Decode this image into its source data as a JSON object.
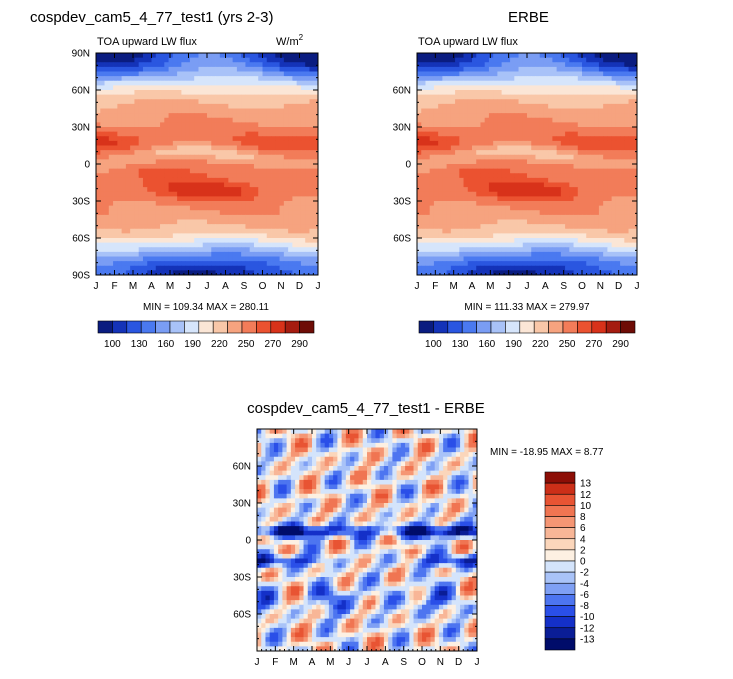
{
  "figure": {
    "colors": {
      "abs_scale": [
        "#0a1c80",
        "#1433b8",
        "#2a56e0",
        "#4a79f0",
        "#7a9df4",
        "#a8c2f8",
        "#d6e5fb",
        "#fbe6d6",
        "#f9c7a8",
        "#f6a37f",
        "#f27c59",
        "#eb5230",
        "#d8321a",
        "#a51c10",
        "#6e0c06"
      ],
      "diff_scale": [
        "#000c6a",
        "#0a1d96",
        "#1430c8",
        "#2a4fe8",
        "#4d75f0",
        "#7fa0f4",
        "#a9c3f8",
        "#d4e4fb",
        "#fdf0e2",
        "#fbd6bb",
        "#f8b697",
        "#f59674",
        "#f07552",
        "#e85433",
        "#cc2f18",
        "#8c0e06"
      ]
    }
  },
  "panels": {
    "model": {
      "title": "cospdev_cam5_4_77_test1 (yrs 2-3)",
      "subtitle": "TOA upward LW flux",
      "units_base": "W/m",
      "units_exp": "2",
      "stats": "MIN = 109.34 MAX = 280.11"
    },
    "obs": {
      "title": "ERBE",
      "subtitle": "TOA upward LW flux",
      "stats": "MIN = 111.33 MAX = 279.97"
    },
    "diff": {
      "title": "cospdev_cam5_4_77_test1 - ERBE",
      "stats": "MIN = -18.95 MAX =   8.77"
    }
  },
  "chart_data": [
    {
      "type": "heatmap",
      "id": "model",
      "title": "cospdev_cam5_4_77_test1 (yrs 2-3)",
      "subtitle": "TOA upward LW flux",
      "units": "W/m2",
      "x": [
        "J",
        "F",
        "M",
        "A",
        "M",
        "J",
        "J",
        "A",
        "S",
        "O",
        "N",
        "D",
        "J"
      ],
      "y_ticks": [
        "90N",
        "60N",
        "30N",
        "0",
        "30S",
        "60S",
        "90S"
      ],
      "y_values": [
        90,
        60,
        30,
        0,
        -30,
        -60,
        -90
      ],
      "ylim": [
        -90,
        90
      ],
      "min": 109.34,
      "max": 280.11,
      "colorbar_labels": [
        "100",
        "130",
        "160",
        "190",
        "220",
        "250",
        "270",
        "290"
      ]
    },
    {
      "type": "heatmap",
      "id": "obs",
      "title": "ERBE",
      "subtitle": "TOA upward LW flux",
      "x": [
        "J",
        "F",
        "M",
        "A",
        "M",
        "J",
        "J",
        "A",
        "S",
        "O",
        "N",
        "D",
        "J"
      ],
      "y_ticks": [
        "60N",
        "30N",
        "0",
        "30S",
        "60S"
      ],
      "y_values": [
        60,
        30,
        0,
        -30,
        -60
      ],
      "ylim": [
        -90,
        90
      ],
      "min": 111.33,
      "max": 279.97,
      "colorbar_labels": [
        "100",
        "130",
        "160",
        "190",
        "220",
        "250",
        "270",
        "290"
      ]
    },
    {
      "type": "heatmap",
      "id": "diff",
      "title": "cospdev_cam5_4_77_test1 - ERBE",
      "x": [
        "J",
        "F",
        "M",
        "A",
        "M",
        "J",
        "J",
        "A",
        "S",
        "O",
        "N",
        "D",
        "J"
      ],
      "y_ticks": [
        "60N",
        "30N",
        "0",
        "30S",
        "60S"
      ],
      "y_values": [
        60,
        30,
        0,
        -30,
        -60
      ],
      "ylim": [
        -90,
        90
      ],
      "min": -18.95,
      "max": 8.77,
      "colorbar_labels": [
        "13",
        "12",
        "10",
        "8",
        "6",
        "4",
        "2",
        "0",
        "-2",
        "-4",
        "-6",
        "-8",
        "-10",
        "-12",
        "-13"
      ]
    }
  ]
}
